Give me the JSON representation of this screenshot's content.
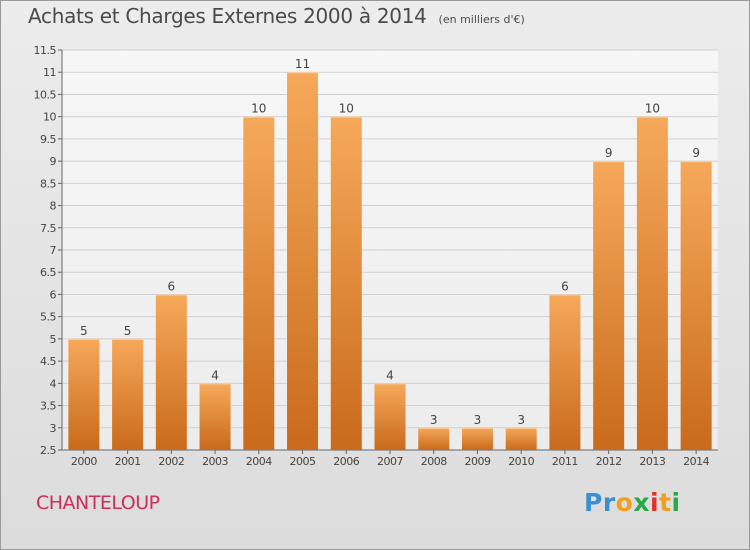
{
  "header": {
    "title": "Achats et Charges Externes 2000 à 2014",
    "subtitle": "(en milliers d'€)"
  },
  "footer": {
    "place": "CHANTELOUP",
    "logo": {
      "text": "Proxiti",
      "letters": [
        {
          "char": "P",
          "color": "#3a8fd0"
        },
        {
          "char": "r",
          "color": "#3a8fd0"
        },
        {
          "char": "o",
          "color": "#f0a020"
        },
        {
          "char": "x",
          "color": "#2aa84a"
        },
        {
          "char": "i",
          "color": "#e0312a"
        },
        {
          "char": "t",
          "color": "#f0a020"
        },
        {
          "char": "i",
          "color": "#2aa84a"
        }
      ]
    }
  },
  "colors": {
    "bar_light": "#f6a95a",
    "bar_dark": "#c96a1c",
    "axis": "#666666",
    "grid": "#d0d0d0",
    "place": "#cc2d5a"
  },
  "chart_data": {
    "type": "bar",
    "title": "Achats et Charges Externes 2000 à 2014",
    "subtitle": "(en milliers d'€)",
    "categories": [
      "2000",
      "2001",
      "2002",
      "2003",
      "2004",
      "2005",
      "2006",
      "2007",
      "2008",
      "2009",
      "2010",
      "2011",
      "2012",
      "2013",
      "2014"
    ],
    "values": [
      5,
      5,
      6,
      4,
      10,
      11,
      10,
      4,
      3,
      3,
      3,
      6,
      9,
      10,
      9
    ],
    "ylim": [
      2.5,
      11.5
    ],
    "yticks": [
      "2.5",
      "3",
      "3.5",
      "4",
      "4.5",
      "5",
      "5.5",
      "6",
      "6.5",
      "7",
      "7.5",
      "8",
      "8.5",
      "9",
      "9.5",
      "10",
      "10.5",
      "11",
      "11.5"
    ],
    "grid": true,
    "data_labels": true
  }
}
